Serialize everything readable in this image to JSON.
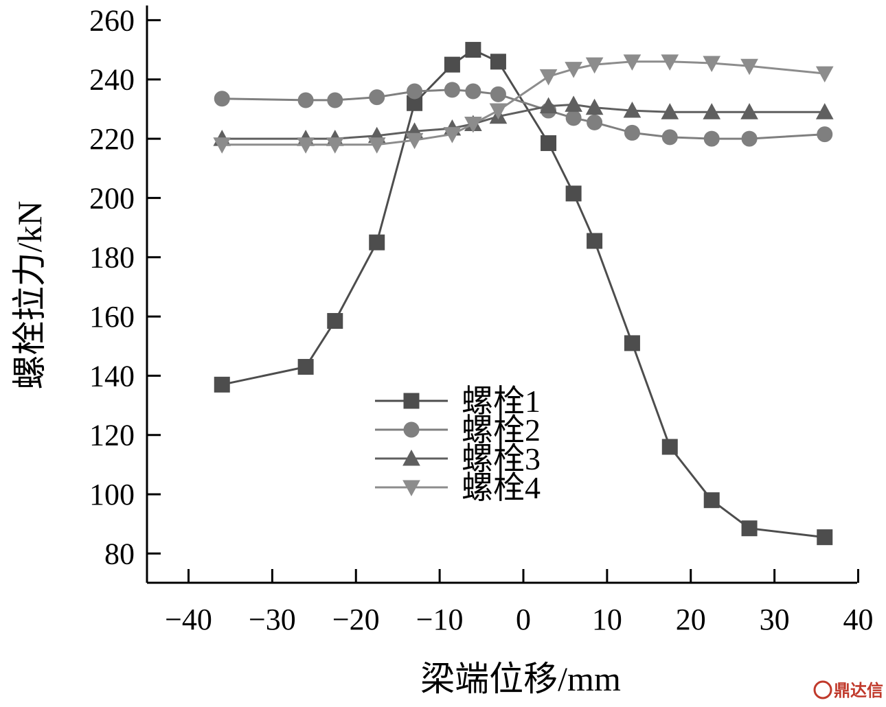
{
  "chart_data": {
    "type": "line",
    "title": "",
    "xlabel": "梁端位移/mm",
    "ylabel": "螺栓拉力/kN",
    "xlim": [
      -45,
      40
    ],
    "ylim": [
      75,
      260
    ],
    "xticks": [
      -40,
      -30,
      -20,
      -10,
      0,
      10,
      20,
      30,
      40
    ],
    "xtick_labels": [
      "−40",
      "−30",
      "−20",
      "−10",
      "0",
      "10",
      "20",
      "30",
      "40"
    ],
    "yticks": [
      80,
      100,
      120,
      140,
      160,
      180,
      200,
      220,
      240,
      260
    ],
    "ytick_labels": [
      "80",
      "100",
      "120",
      "140",
      "160",
      "180",
      "200",
      "220",
      "240",
      "260"
    ],
    "grid": false,
    "legend_position": "lower-center",
    "series": [
      {
        "name": "螺栓1",
        "marker": "square",
        "color": "#4d4d4d",
        "x": [
          -36,
          -26,
          -22.5,
          -17.5,
          -13,
          -8.5,
          -6,
          -3,
          3,
          6,
          8.5,
          13,
          17.5,
          22.5,
          27,
          36
        ],
        "y": [
          137,
          143,
          158.5,
          185,
          232,
          245,
          250,
          246,
          218.5,
          201.5,
          185.5,
          151,
          116,
          98,
          88.5,
          85.5
        ]
      },
      {
        "name": "螺栓2",
        "marker": "circle",
        "color": "#7f7f7f",
        "x": [
          -36,
          -26,
          -22.5,
          -17.5,
          -13,
          -8.5,
          -6,
          -3,
          3,
          6,
          8.5,
          13,
          17.5,
          22.5,
          27,
          36
        ],
        "y": [
          233.5,
          233,
          233,
          234,
          236,
          236.5,
          236,
          235,
          229.5,
          227,
          225.5,
          222,
          220.5,
          220,
          220,
          221.5
        ]
      },
      {
        "name": "螺栓3",
        "marker": "triangle-up",
        "color": "#5f5f5f",
        "x": [
          -36,
          -26,
          -22.5,
          -17.5,
          -13,
          -8.5,
          -6,
          -3,
          3,
          6,
          8.5,
          13,
          17.5,
          22.5,
          27,
          36
        ],
        "y": [
          220,
          220,
          220,
          221,
          222.5,
          223.5,
          225,
          227.5,
          231,
          231.5,
          230.5,
          229.5,
          229,
          229,
          229,
          229
        ]
      },
      {
        "name": "螺栓4",
        "marker": "triangle-down",
        "color": "#8c8c8c",
        "x": [
          -36,
          -26,
          -22.5,
          -17.5,
          -13,
          -8.5,
          -6,
          -3,
          3,
          6,
          8.5,
          13,
          17.5,
          22.5,
          27,
          36
        ],
        "y": [
          218,
          218,
          218,
          218,
          219.5,
          221.5,
          225,
          229.5,
          241,
          243.5,
          245,
          246,
          246,
          245.5,
          244.5,
          242
        ]
      }
    ]
  },
  "watermark": {
    "text": "鼎达信",
    "color": "#c0392b"
  }
}
